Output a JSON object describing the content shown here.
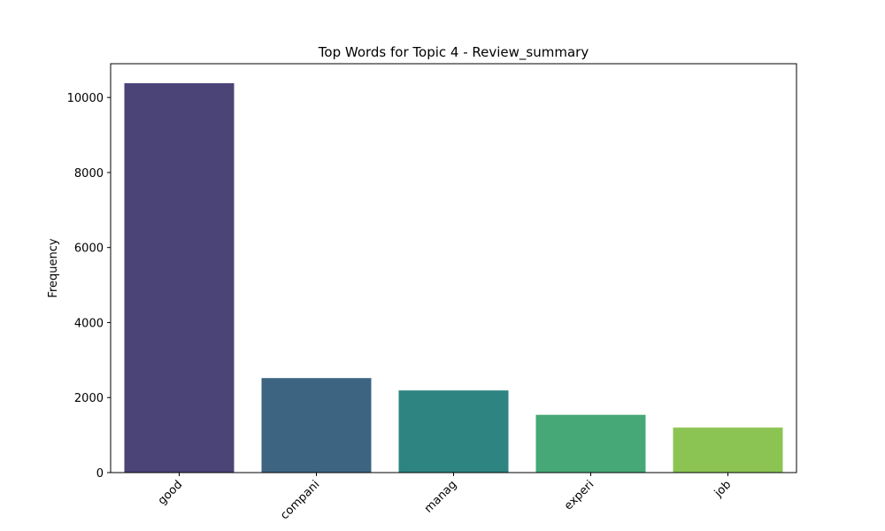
{
  "chart_data": {
    "type": "bar",
    "title": "Top Words for Topic 4 - Review_summary",
    "xlabel": "",
    "ylabel": "Frequency",
    "categories": [
      "good",
      "compani",
      "manag",
      "experi",
      "job"
    ],
    "values": [
      10380,
      2520,
      2190,
      1540,
      1200
    ],
    "colors": [
      "#4a4477",
      "#3d6582",
      "#2d8480",
      "#46a877",
      "#8cc454"
    ],
    "ylim": [
      0,
      10900
    ],
    "yticks": [
      0,
      2000,
      4000,
      6000,
      8000,
      10000
    ],
    "grid": false,
    "legend": "none"
  }
}
